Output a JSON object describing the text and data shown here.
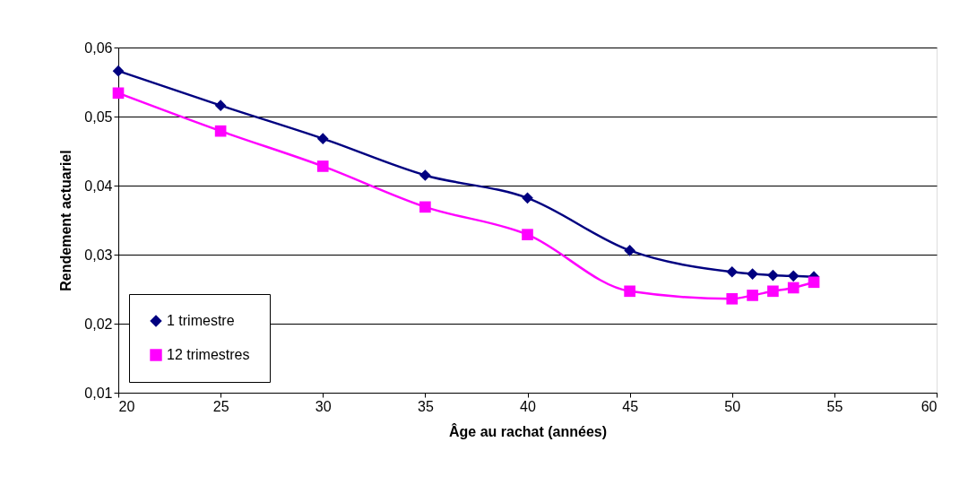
{
  "chart_data": {
    "type": "line",
    "xlabel": "Âge au rachat (années)",
    "ylabel": "Rendement actuariel",
    "x": [
      20,
      25,
      30,
      35,
      40,
      45,
      50,
      51,
      52,
      53,
      54
    ],
    "series": [
      {
        "name": "1 trimestre",
        "color": "#000080",
        "marker": "diamond",
        "values": [
          0.0566,
          0.0516,
          0.0468,
          0.0415,
          0.0382,
          0.0306,
          0.0275,
          0.0272,
          0.027,
          0.0269,
          0.0268
        ]
      },
      {
        "name": "12 trimestres",
        "color": "#ff00ff",
        "marker": "square",
        "values": [
          0.0534,
          0.0479,
          0.0428,
          0.0369,
          0.0329,
          0.0247,
          0.0236,
          0.0241,
          0.0247,
          0.0252,
          0.026
        ]
      }
    ],
    "xlim": [
      20,
      60
    ],
    "xticks": [
      20,
      25,
      30,
      35,
      40,
      45,
      50,
      55,
      60
    ],
    "ylim": [
      0.01,
      0.06
    ],
    "yticks": [
      {
        "value": 0.01,
        "label": "0,01"
      },
      {
        "value": 0.02,
        "label": "0,02"
      },
      {
        "value": 0.03,
        "label": "0,03"
      },
      {
        "value": 0.04,
        "label": "0,04"
      },
      {
        "value": 0.05,
        "label": "0,05"
      },
      {
        "value": 0.06,
        "label": "0,06"
      }
    ],
    "grid": "y",
    "legend": "bottom left",
    "line_style": "solid"
  }
}
